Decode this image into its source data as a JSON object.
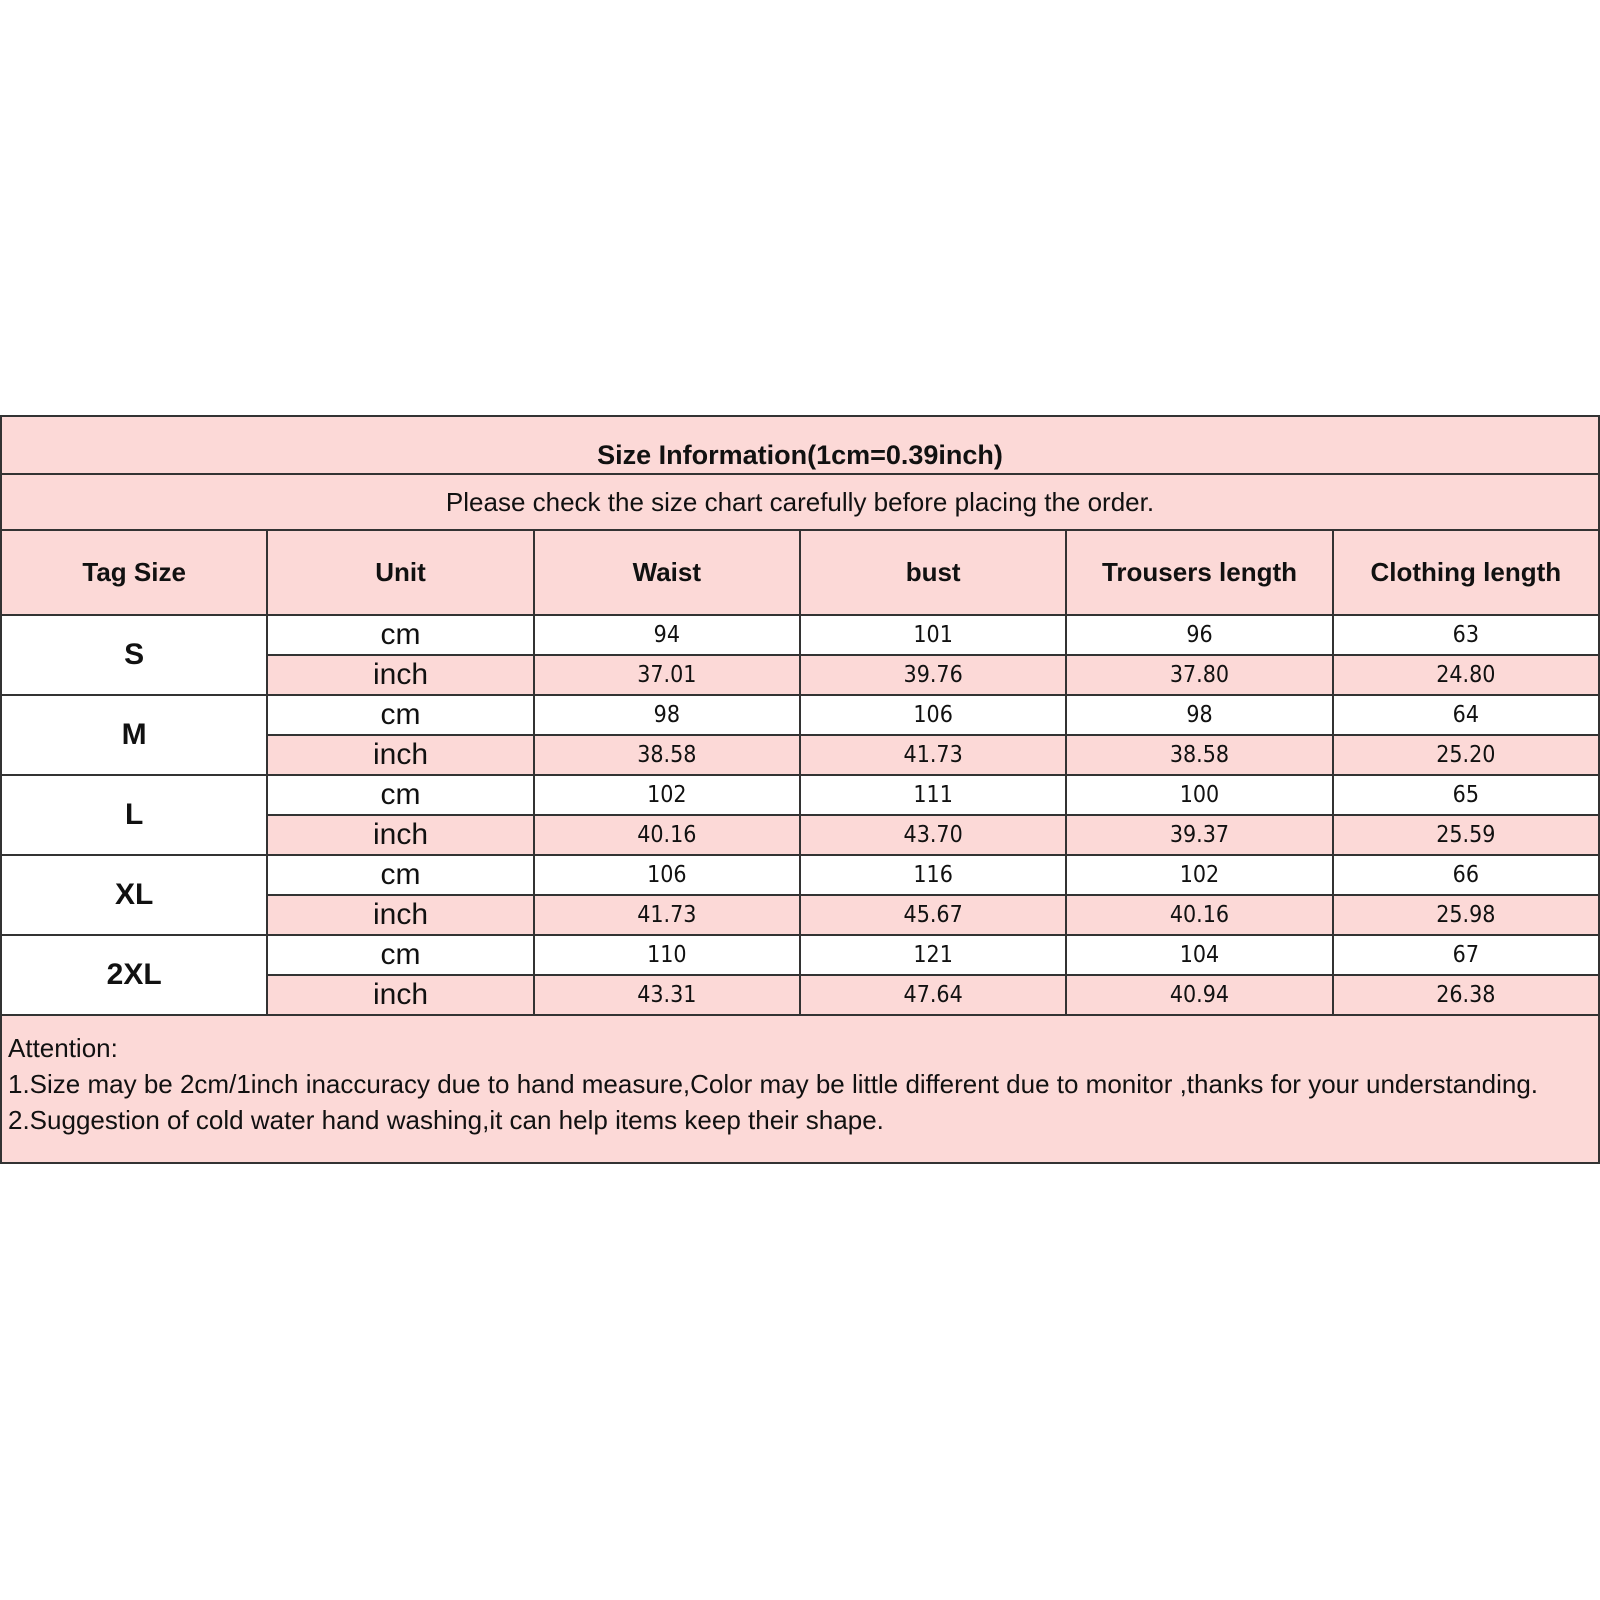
{
  "title": "Size Information(1cm=0.39inch)",
  "subtitle": "Please check the size chart carefully before placing the order.",
  "headers": [
    "Tag Size",
    "Unit",
    "Waist",
    "bust",
    "Trousers length",
    "Clothing length"
  ],
  "rows": [
    {
      "size": "S",
      "cm": [
        "94",
        "101",
        "96",
        "63"
      ],
      "inch": [
        "37.01",
        "39.76",
        "37.80",
        "24.80"
      ]
    },
    {
      "size": "M",
      "cm": [
        "98",
        "106",
        "98",
        "64"
      ],
      "inch": [
        "38.58",
        "41.73",
        "38.58",
        "25.20"
      ]
    },
    {
      "size": "L",
      "cm": [
        "102",
        "111",
        "100",
        "65"
      ],
      "inch": [
        "40.16",
        "43.70",
        "39.37",
        "25.59"
      ]
    },
    {
      "size": "XL",
      "cm": [
        "106",
        "116",
        "102",
        "66"
      ],
      "inch": [
        "41.73",
        "45.67",
        "40.16",
        "25.98"
      ]
    },
    {
      "size": "2XL",
      "cm": [
        "110",
        "121",
        "104",
        "67"
      ],
      "inch": [
        "43.31",
        "47.64",
        "40.94",
        "26.38"
      ]
    }
  ],
  "units": {
    "cm": "cm",
    "inch": "inch"
  },
  "notes": [
    "Attention:",
    "1.Size may be 2cm/1inch inaccuracy due to hand measure,Color may be little different due to monitor ,thanks for your understanding.",
    "2.Suggestion of cold water hand washing,it can help items keep their shape."
  ],
  "colors": {
    "header_bg": "#fcd9d7",
    "border": "#333333"
  }
}
